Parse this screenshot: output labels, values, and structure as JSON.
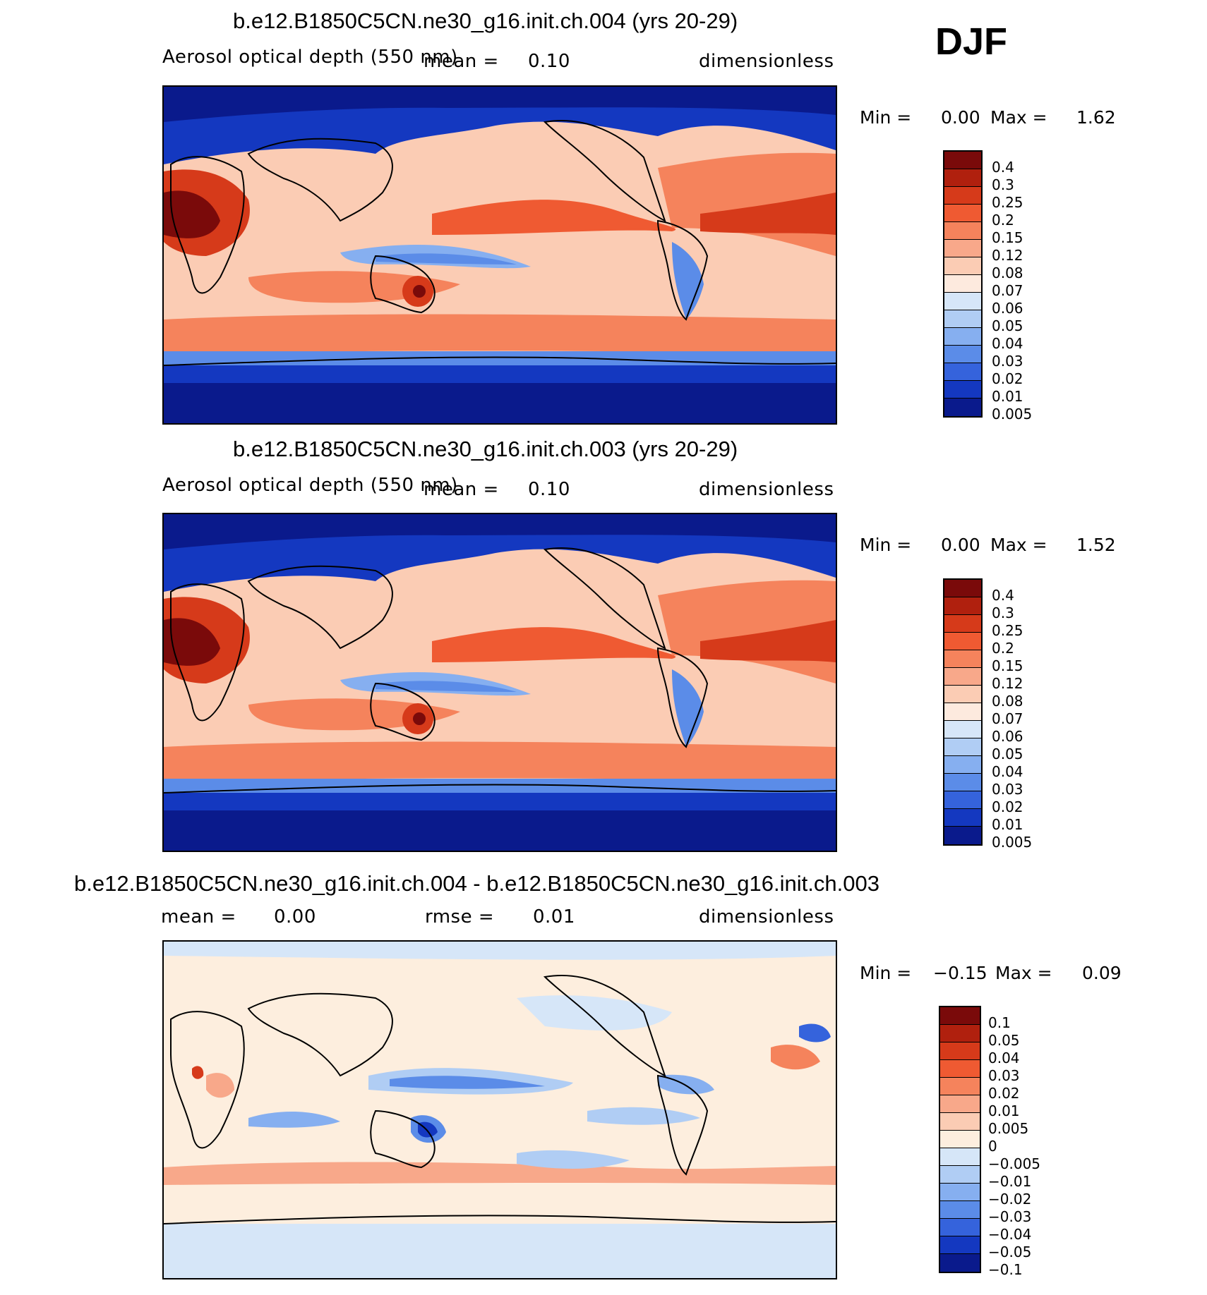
{
  "season": "DJF",
  "panels": [
    {
      "title": "b.e12.B1850C5CN.ne30_g16.init.ch.004 (yrs 20-29)",
      "variable": "Aerosol optical depth (550 nm)",
      "mean_label": "mean =",
      "mean_value": "0.10",
      "units": "dimensionless",
      "min_label": "Min =",
      "min_value": "0.00",
      "max_label": "Max =",
      "max_value": "1.62",
      "colorbar": [
        "0.4",
        "0.3",
        "0.25",
        "0.2",
        "0.15",
        "0.12",
        "0.08",
        "0.07",
        "0.06",
        "0.05",
        "0.04",
        "0.03",
        "0.02",
        "0.01",
        "0.005"
      ]
    },
    {
      "title": "b.e12.B1850C5CN.ne30_g16.init.ch.003 (yrs 20-29)",
      "variable": "Aerosol optical depth (550 nm)",
      "mean_label": "mean =",
      "mean_value": "0.10",
      "units": "dimensionless",
      "min_label": "Min =",
      "min_value": "0.00",
      "max_label": "Max =",
      "max_value": "1.52",
      "colorbar": [
        "0.4",
        "0.3",
        "0.25",
        "0.2",
        "0.15",
        "0.12",
        "0.08",
        "0.07",
        "0.06",
        "0.05",
        "0.04",
        "0.03",
        "0.02",
        "0.01",
        "0.005"
      ]
    },
    {
      "title": "b.e12.B1850C5CN.ne30_g16.init.ch.004 - b.e12.B1850C5CN.ne30_g16.init.ch.003",
      "mean_label": "mean =",
      "mean_value": "0.00",
      "rmse_label": "rmse =",
      "rmse_value": "0.01",
      "units": "dimensionless",
      "min_label": "Min =",
      "min_value": "−0.15",
      "max_label": "Max =",
      "max_value": "0.09",
      "colorbar": [
        "0.1",
        "0.05",
        "0.04",
        "0.03",
        "0.02",
        "0.01",
        "0.005",
        "0",
        "−0.005",
        "−0.01",
        "−0.02",
        "−0.03",
        "−0.04",
        "−0.05",
        "−0.1"
      ]
    }
  ],
  "palettes": {
    "aod": [
      "#7a0a0a",
      "#b0200e",
      "#d63a1a",
      "#ef5a32",
      "#f5835c",
      "#f8a88a",
      "#fbccb4",
      "#fdeade",
      "#d6e6f8",
      "#b0cdf4",
      "#86aff0",
      "#5b8ce8",
      "#3563dc",
      "#1438c0",
      "#0a1a8c"
    ],
    "diff": [
      "#7a0a0a",
      "#b0200e",
      "#d63a1a",
      "#ef5a32",
      "#f5835c",
      "#f8a88a",
      "#fbccb4",
      "#fdeede",
      "#d6e6f8",
      "#b0cdf4",
      "#86aff0",
      "#5b8ce8",
      "#3563dc",
      "#1438c0",
      "#0a1a8c"
    ]
  }
}
